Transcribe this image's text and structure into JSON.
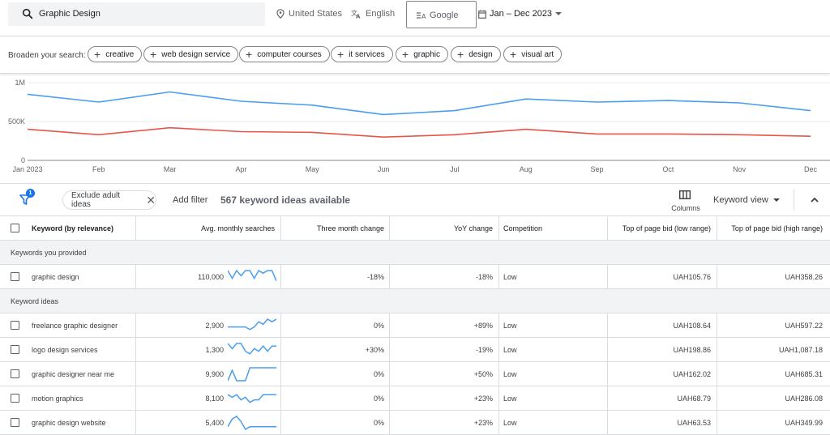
{
  "search": {
    "query": "Graphic Design"
  },
  "targeting": {
    "location": "United States",
    "language": "English",
    "network": "Google",
    "date_range": "Jan – Dec 2023"
  },
  "broaden": {
    "label": "Broaden your search:",
    "chips": [
      "creative",
      "web design service",
      "computer courses",
      "it services",
      "graphic",
      "design",
      "visual art"
    ]
  },
  "chart_data": {
    "type": "line",
    "x": [
      "Jan 2023",
      "Feb",
      "Mar",
      "Apr",
      "May",
      "Jun",
      "Jul",
      "Aug",
      "Sep",
      "Oct",
      "Nov",
      "Dec"
    ],
    "y_ticks": [
      "1M",
      "500K",
      "0"
    ],
    "ylim": [
      0,
      1000000
    ],
    "grid": true,
    "series": [
      {
        "color": "#4a9df0",
        "values": [
          850000,
          750000,
          880000,
          760000,
          710000,
          590000,
          640000,
          790000,
          750000,
          770000,
          740000,
          640000
        ]
      },
      {
        "color": "#e9544a",
        "values": [
          400000,
          330000,
          420000,
          370000,
          360000,
          300000,
          330000,
          400000,
          340000,
          340000,
          330000,
          310000
        ]
      }
    ]
  },
  "filters": {
    "badge": "1",
    "exclude_chip": "Exclude adult ideas",
    "add_filter": "Add filter",
    "ideas_count": "567 keyword ideas available",
    "columns_label": "Columns",
    "view_label": "Keyword view"
  },
  "table": {
    "headers": {
      "keyword": "Keyword (by relevance)",
      "avg": "Avg. monthly searches",
      "three_month": "Three month change",
      "yoy": "YoY change",
      "competition": "Competition",
      "low_bid": "Top of page bid (low range)",
      "high_bid": "Top of page bid (high range)"
    },
    "section_provided": "Keywords you provided",
    "section_ideas": "Keyword ideas",
    "provided": [
      {
        "keyword": "graphic design",
        "avg": "110,000",
        "three_month": "-18%",
        "yoy": "-18%",
        "competition": "Low",
        "low_bid": "UAH105.76",
        "high_bid": "UAH358.26",
        "trend": [
          5,
          2,
          5,
          3,
          5,
          5,
          2,
          5,
          4,
          5,
          5,
          1
        ]
      }
    ],
    "ideas": [
      {
        "keyword": "freelance graphic designer",
        "avg": "2,900",
        "three_month": "0%",
        "yoy": "+89%",
        "competition": "Low",
        "low_bid": "UAH108.64",
        "high_bid": "UAH597.22",
        "trend": [
          2,
          2,
          2,
          2,
          2,
          1,
          2,
          4,
          3,
          5,
          4,
          5
        ]
      },
      {
        "keyword": "logo design services",
        "avg": "1,300",
        "three_month": "+30%",
        "yoy": "-19%",
        "competition": "Low",
        "low_bid": "UAH198.86",
        "high_bid": "UAH1,087.18",
        "trend": [
          5,
          3,
          5,
          5,
          2,
          1,
          3,
          2,
          4,
          2,
          4,
          4
        ]
      },
      {
        "keyword": "graphic designer near me",
        "avg": "9,900",
        "three_month": "0%",
        "yoy": "+50%",
        "competition": "Low",
        "low_bid": "UAH162.02",
        "high_bid": "UAH685.31",
        "trend": [
          0,
          4,
          0,
          0,
          0,
          5,
          5,
          5,
          5,
          5,
          5,
          5
        ]
      },
      {
        "keyword": "motion graphics",
        "avg": "8,100",
        "three_month": "0%",
        "yoy": "+23%",
        "competition": "Low",
        "low_bid": "UAH68.79",
        "high_bid": "UAH286.08",
        "trend": [
          4,
          3,
          4,
          2,
          3,
          1,
          2,
          2,
          4,
          4,
          4,
          4
        ]
      },
      {
        "keyword": "graphic design website",
        "avg": "5,400",
        "three_month": "0%",
        "yoy": "+23%",
        "competition": "Low",
        "low_bid": "UAH63.53",
        "high_bid": "UAH349.99",
        "trend": [
          1,
          4,
          5,
          3,
          0,
          1,
          1,
          1,
          1,
          1,
          1,
          1
        ]
      }
    ]
  },
  "colors": {
    "accent": "#1a73e8",
    "spark": "#4a9df0"
  }
}
